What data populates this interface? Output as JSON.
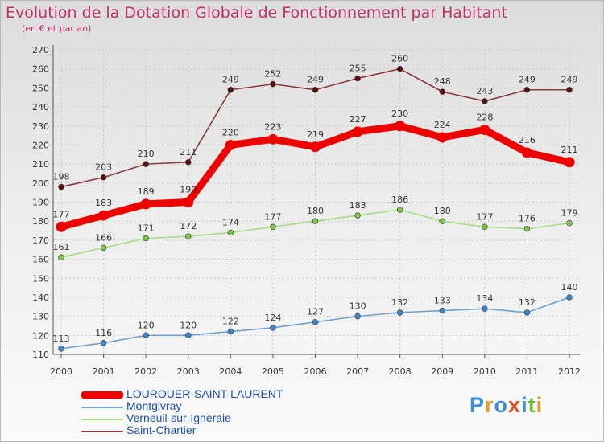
{
  "header": {
    "title": "Evolution de la Dotation Globale de Fonctionnement par Habitant",
    "subtitle": "(en € et par an)"
  },
  "logo": {
    "text": "Proxiti",
    "letter_colors": [
      "#3a8fd8",
      "#e0a020",
      "#3a8fd8",
      "#e05020",
      "#3a8fd8",
      "#70b830",
      "#e0a020"
    ]
  },
  "chart_data": {
    "type": "line",
    "x": [
      "2000",
      "2001",
      "2002",
      "2003",
      "2004",
      "2005",
      "2006",
      "2007",
      "2008",
      "2009",
      "2010",
      "2011",
      "2012"
    ],
    "ylim": [
      110,
      270
    ],
    "yticks": [
      110,
      120,
      130,
      140,
      150,
      160,
      170,
      180,
      190,
      200,
      210,
      220,
      230,
      240,
      250,
      260,
      270
    ],
    "grid": true,
    "legend_position": "bottom-left",
    "series": [
      {
        "name": "Saint-Chartier",
        "color": "#8b3a3a",
        "marker": "#5a1010",
        "emphasis": false,
        "values": [
          198,
          203,
          210,
          211,
          249,
          252,
          249,
          255,
          260,
          248,
          243,
          249,
          249
        ]
      },
      {
        "name": "Verneuil-sur-Igneraie",
        "color": "#a8dc80",
        "marker": "#7ac843",
        "emphasis": false,
        "values": [
          161,
          166,
          171,
          172,
          174,
          177,
          180,
          183,
          186,
          180,
          177,
          176,
          179
        ]
      },
      {
        "name": "Montgivray",
        "color": "#6fa0d0",
        "marker": "#3e86c8",
        "emphasis": false,
        "values": [
          113,
          116,
          120,
          120,
          122,
          124,
          127,
          130,
          132,
          133,
          134,
          132,
          140
        ]
      },
      {
        "name": "LOUROUER-SAINT-LAURENT",
        "color": "#ee0000",
        "marker": "#ee0000",
        "emphasis": true,
        "values": [
          177,
          183,
          189,
          190,
          220,
          223,
          219,
          227,
          230,
          224,
          228,
          216,
          211
        ]
      }
    ],
    "legend_order": [
      "LOUROUER-SAINT-LAURENT",
      "Montgivray",
      "Verneuil-sur-Igneraie",
      "Saint-Chartier"
    ]
  }
}
